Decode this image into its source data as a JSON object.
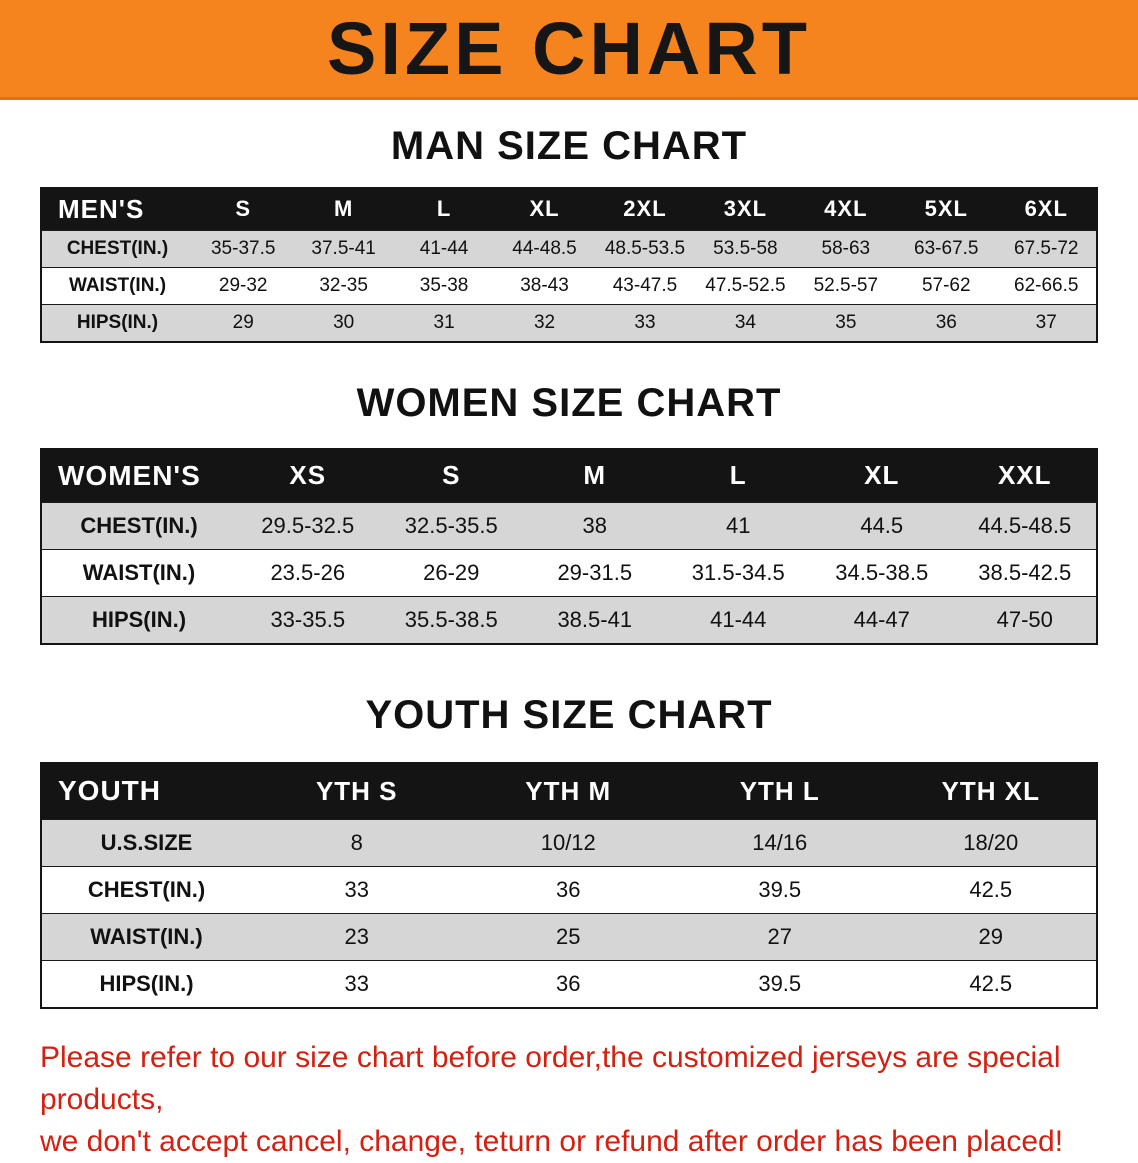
{
  "banner": {
    "title": "SIZE CHART",
    "background_color": "#f5831e",
    "text_color": "#161616"
  },
  "colors": {
    "header_bar": "#141414",
    "row_shade": "#d6d6d6",
    "disclaimer_red": "#d32011"
  },
  "chart_data": [
    {
      "type": "table",
      "title": "MAN SIZE CHART",
      "header": [
        "MEN'S",
        "S",
        "M",
        "L",
        "XL",
        "2XL",
        "3XL",
        "4XL",
        "5XL",
        "6XL"
      ],
      "rows": [
        [
          "CHEST(IN.)",
          "35-37.5",
          "37.5-41",
          "41-44",
          "44-48.5",
          "48.5-53.5",
          "53.5-58",
          "58-63",
          "63-67.5",
          "67.5-72"
        ],
        [
          "WAIST(IN.)",
          "29-32",
          "32-35",
          "35-38",
          "38-43",
          "43-47.5",
          "47.5-52.5",
          "52.5-57",
          "57-62",
          "62-66.5"
        ],
        [
          "HIPS(IN.)",
          "29",
          "30",
          "31",
          "32",
          "33",
          "34",
          "35",
          "36",
          "37"
        ]
      ]
    },
    {
      "type": "table",
      "title": "WOMEN SIZE CHART",
      "header": [
        "WOMEN'S",
        "XS",
        "S",
        "M",
        "L",
        "XL",
        "XXL"
      ],
      "rows": [
        [
          "CHEST(IN.)",
          "29.5-32.5",
          "32.5-35.5",
          "38",
          "41",
          "44.5",
          "44.5-48.5"
        ],
        [
          "WAIST(IN.)",
          "23.5-26",
          "26-29",
          "29-31.5",
          "31.5-34.5",
          "34.5-38.5",
          "38.5-42.5"
        ],
        [
          "HIPS(IN.)",
          "33-35.5",
          "35.5-38.5",
          "38.5-41",
          "41-44",
          "44-47",
          "47-50"
        ]
      ]
    },
    {
      "type": "table",
      "title": "YOUTH SIZE CHART",
      "header": [
        "YOUTH",
        "YTH S",
        "YTH M",
        "YTH L",
        "YTH XL"
      ],
      "rows": [
        [
          "U.S.SIZE",
          "8",
          "10/12",
          "14/16",
          "18/20"
        ],
        [
          "CHEST(IN.)",
          "33",
          "36",
          "39.5",
          "42.5"
        ],
        [
          "WAIST(IN.)",
          "23",
          "25",
          "27",
          "29"
        ],
        [
          "HIPS(IN.)",
          "33",
          "36",
          "39.5",
          "42.5"
        ]
      ]
    }
  ],
  "disclaimer": {
    "line1": "Please refer to our size chart before order,the customized jerseys are special products,",
    "line2": "we don't accept cancel, change, teturn or refund after order has been placed!"
  }
}
